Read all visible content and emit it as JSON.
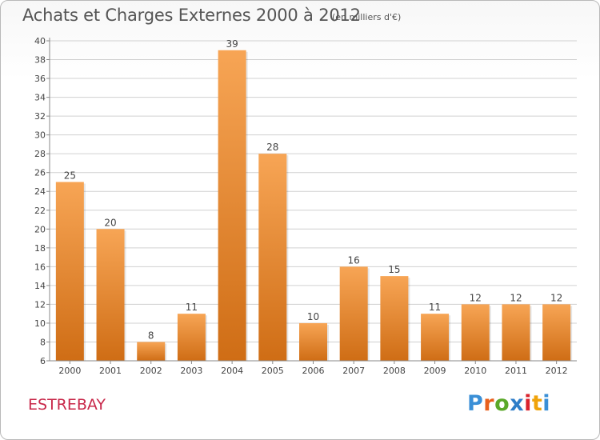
{
  "header": {
    "title": "Achats et Charges Externes 2000 à 2012",
    "unit_note": "(en milliers d'€)"
  },
  "footer": {
    "place": "ESTREBAY",
    "logo_text": "Proxiti",
    "logo_colors": [
      "#3a8fd6",
      "#e8601c",
      "#5aa829",
      "#2f7ec8",
      "#d9232d",
      "#f0a30a",
      "#3a8fd6"
    ]
  },
  "colors": {
    "bar_light": "#f7a555",
    "bar_dark": "#cf6d15",
    "grid": "#d0d0d0",
    "axis": "#8a8a8a",
    "label": "#444444",
    "place": "#c8284a"
  },
  "chart_data": {
    "type": "bar",
    "title": "Achats et Charges Externes 2000 à 2012",
    "subtitle": "(en milliers d'€)",
    "categories": [
      "2000",
      "2001",
      "2002",
      "2003",
      "2004",
      "2005",
      "2006",
      "2007",
      "2008",
      "2009",
      "2010",
      "2011",
      "2012"
    ],
    "values": [
      25,
      20,
      8,
      11,
      39,
      28,
      10,
      16,
      15,
      11,
      12,
      12,
      12
    ],
    "data_labels": [
      "25",
      "20",
      "8",
      "11",
      "39",
      "28",
      "10",
      "16",
      "15",
      "11",
      "12",
      "12",
      "12"
    ],
    "ylim": [
      6,
      40
    ],
    "yticks": [
      "6",
      "8",
      "10",
      "12",
      "14",
      "16",
      "18",
      "20",
      "22",
      "24",
      "26",
      "28",
      "30",
      "32",
      "34",
      "36",
      "38",
      "40"
    ],
    "grid": true,
    "xlabel": "",
    "ylabel": ""
  }
}
